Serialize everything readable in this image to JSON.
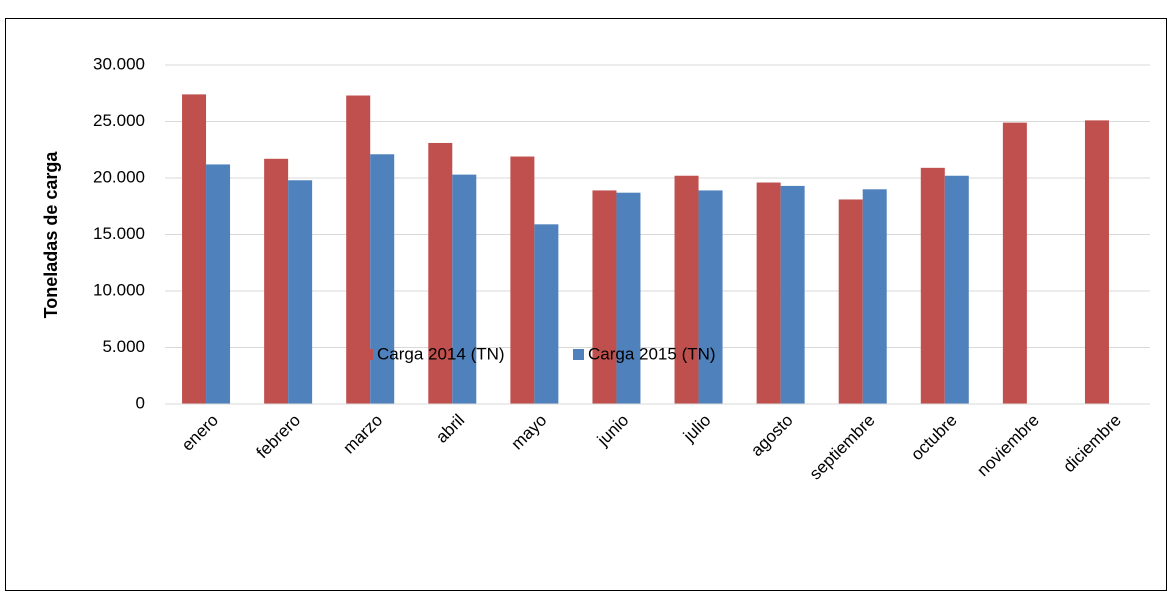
{
  "chart_data": {
    "type": "bar",
    "y_label": "Toneladas de carga",
    "categories": [
      "enero",
      "febrero",
      "marzo",
      "abril",
      "mayo",
      "junio",
      "julio",
      "agosto",
      "septiembre",
      "octubre",
      "noviembre",
      "diciembre"
    ],
    "series": [
      {
        "name": "Carga 2014 (TN)",
        "color": "#c0504d",
        "values": [
          27400,
          21700,
          27300,
          23100,
          21900,
          18900,
          20200,
          19600,
          18100,
          20900,
          24900,
          25100
        ]
      },
      {
        "name": "Carga 2015 (TN)",
        "color": "#4f81bd",
        "values": [
          21200,
          19800,
          22100,
          20300,
          15900,
          18700,
          18900,
          19300,
          19000,
          20200,
          null,
          null
        ]
      }
    ],
    "ylim": [
      0,
      30000
    ],
    "yticks": [
      0,
      {
        "value": 5000,
        "label": "5.000"
      },
      {
        "value": 10000,
        "label": "10.000"
      },
      {
        "value": 15000,
        "label": "15.000"
      },
      {
        "value": 20000,
        "label": "20.000"
      },
      {
        "value": 25000,
        "label": "25.000"
      },
      {
        "value": 30000,
        "label": "30.000"
      }
    ],
    "grid": true,
    "legend": "bottom"
  }
}
